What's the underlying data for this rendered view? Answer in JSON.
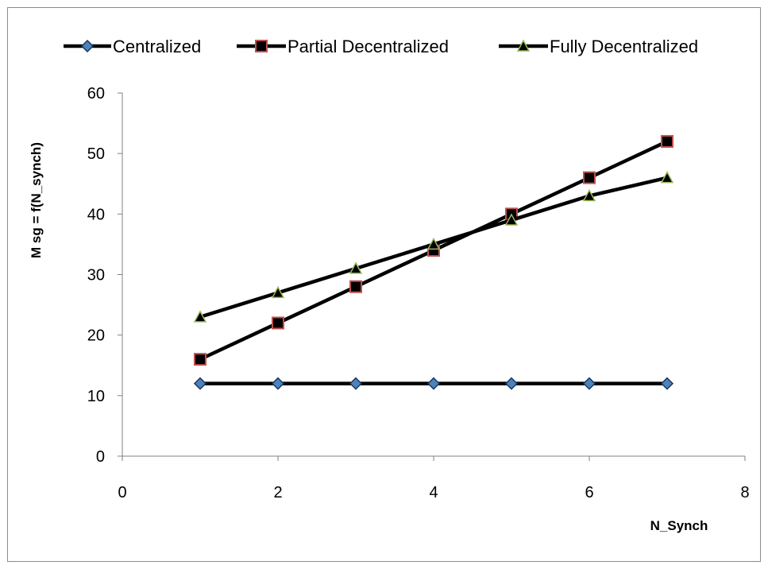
{
  "chart_data": {
    "type": "line",
    "title": "",
    "xlabel": "N_Synch",
    "ylabel": "M sg = f(N_synch)",
    "xlim": [
      0,
      8
    ],
    "ylim": [
      0,
      60
    ],
    "xticks": [
      0,
      2,
      4,
      6,
      8
    ],
    "yticks": [
      0,
      10,
      20,
      30,
      40,
      50,
      60
    ],
    "grid": false,
    "legend_position": "top",
    "x": [
      1,
      2,
      3,
      4,
      5,
      6,
      7
    ],
    "series": [
      {
        "name": "Centralized",
        "marker": "diamond",
        "marker_fill": "#4f81bd",
        "marker_edge": "#17375e",
        "line_color": "#000000",
        "values": [
          12,
          12,
          12,
          12,
          12,
          12,
          12
        ]
      },
      {
        "name": "Partial Decentralized",
        "marker": "square",
        "marker_fill": "#000000",
        "marker_edge": "#c0504d",
        "line_color": "#000000",
        "values": [
          16,
          22,
          28,
          34,
          40,
          46,
          52
        ]
      },
      {
        "name": "Fully Decentralized",
        "marker": "triangle",
        "marker_fill": "#000000",
        "marker_edge": "#9bbb59",
        "line_color": "#000000",
        "values": [
          23,
          27,
          31,
          35,
          39,
          43,
          46
        ]
      }
    ]
  }
}
